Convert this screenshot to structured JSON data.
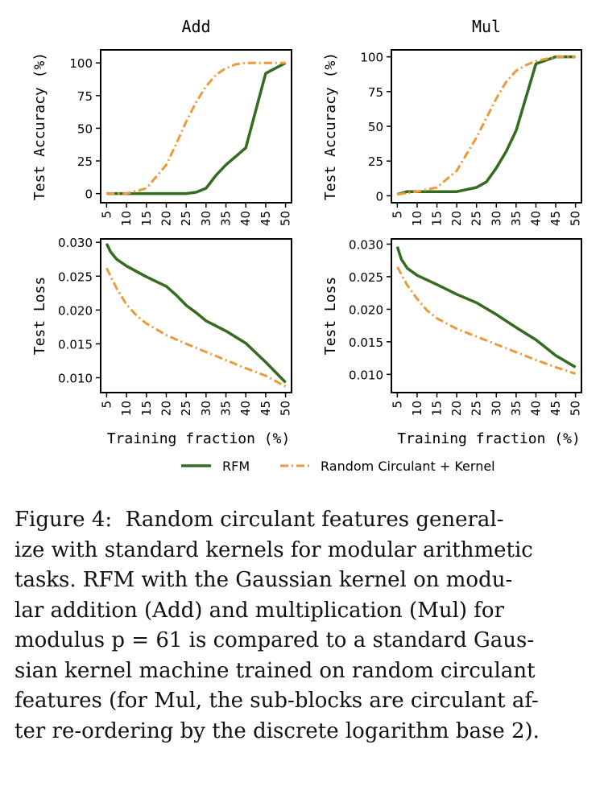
{
  "figure": {
    "legend": [
      {
        "name": "RFM",
        "color": "#336b1f",
        "dash": "solid"
      },
      {
        "name": "Random Circulant + Kernel",
        "color": "#ec9a3a",
        "dash": "dashdot"
      }
    ]
  },
  "chart_data": [
    {
      "id": "add-accuracy",
      "type": "line",
      "title": "Add",
      "xlabel": "",
      "ylabel": "Test Accuracy (%)",
      "ylim": [
        -7,
        110
      ],
      "yticks": [
        0,
        25,
        50,
        75,
        100
      ],
      "ytick_labels": [
        "0",
        "25",
        "50",
        "75",
        "100"
      ],
      "xticks": [
        5,
        10,
        15,
        20,
        25,
        30,
        35,
        40,
        45,
        50
      ],
      "xtick_labels": [
        "5",
        "10",
        "15",
        "20",
        "25",
        "30",
        "35",
        "40",
        "45",
        "50"
      ],
      "series": [
        {
          "name": "RFM",
          "x": [
            5,
            10,
            15,
            20,
            22,
            25,
            27.5,
            30,
            32.5,
            35,
            40,
            45,
            50
          ],
          "values": [
            0,
            0,
            0,
            0,
            0,
            0,
            1,
            4,
            14,
            22,
            35,
            92,
            100
          ]
        },
        {
          "name": "Random Circulant + Kernel",
          "x": [
            5,
            10,
            15,
            20,
            22.5,
            25,
            27.5,
            30,
            32.5,
            35,
            37.5,
            40,
            45,
            50
          ],
          "values": [
            0,
            0,
            4,
            22,
            38,
            55,
            70,
            82,
            91,
            96,
            99,
            100,
            100,
            100
          ]
        }
      ]
    },
    {
      "id": "mul-accuracy",
      "type": "line",
      "title": "Mul",
      "xlabel": "",
      "ylabel": "Test Accuracy (%)",
      "ylim": [
        -5,
        105
      ],
      "yticks": [
        0,
        25,
        50,
        75,
        100
      ],
      "ytick_labels": [
        "0",
        "25",
        "50",
        "75",
        "100"
      ],
      "xticks": [
        5,
        10,
        15,
        20,
        25,
        30,
        35,
        40,
        45,
        50
      ],
      "xtick_labels": [
        "5",
        "10",
        "15",
        "20",
        "25",
        "30",
        "35",
        "40",
        "45",
        "50"
      ],
      "series": [
        {
          "name": "RFM",
          "x": [
            5,
            7.5,
            10,
            15,
            20,
            25,
            27.5,
            30,
            32.5,
            35,
            40,
            45,
            50
          ],
          "values": [
            1,
            3,
            3,
            3,
            3,
            6,
            10,
            20,
            32,
            47,
            95,
            100,
            100
          ]
        },
        {
          "name": "Random Circulant + Kernel",
          "x": [
            5,
            10,
            15,
            20,
            22.5,
            25,
            27.5,
            30,
            32.5,
            35,
            37.5,
            40,
            45,
            50
          ],
          "values": [
            1,
            3,
            6,
            18,
            30,
            42,
            56,
            70,
            82,
            90,
            94,
            97,
            100,
            100
          ]
        }
      ]
    },
    {
      "id": "add-loss",
      "type": "line",
      "title": "",
      "xlabel": "Training fraction (%)",
      "ylabel": "Test Loss",
      "ylim": [
        0.0078,
        0.0305
      ],
      "yticks": [
        0.01,
        0.015,
        0.02,
        0.025,
        0.03
      ],
      "ytick_labels": [
        "0.010",
        "0.015",
        "0.020",
        "0.025",
        "0.030"
      ],
      "xticks": [
        5,
        10,
        15,
        20,
        25,
        30,
        35,
        40,
        45,
        50
      ],
      "xtick_labels": [
        "5",
        "10",
        "15",
        "20",
        "25",
        "30",
        "35",
        "40",
        "45",
        "50"
      ],
      "series": [
        {
          "name": "RFM",
          "x": [
            5,
            6,
            7.5,
            10,
            15,
            20,
            22.5,
            25,
            27.5,
            30,
            35,
            40,
            45,
            50
          ],
          "values": [
            0.0298,
            0.0286,
            0.0275,
            0.0265,
            0.0249,
            0.0235,
            0.0222,
            0.0207,
            0.0196,
            0.0184,
            0.0169,
            0.0151,
            0.0123,
            0.0093
          ]
        },
        {
          "name": "Random Circulant + Kernel",
          "x": [
            5,
            7.5,
            10,
            12.5,
            15,
            20,
            25,
            30,
            35,
            40,
            45,
            50
          ],
          "values": [
            0.0262,
            0.0232,
            0.0208,
            0.0192,
            0.018,
            0.0163,
            0.015,
            0.0138,
            0.0126,
            0.0114,
            0.0103,
            0.0087
          ]
        }
      ]
    },
    {
      "id": "mul-loss",
      "type": "line",
      "title": "",
      "xlabel": "Training fraction (%)",
      "ylabel": "Test Loss",
      "ylim": [
        0.0072,
        0.0308
      ],
      "yticks": [
        0.01,
        0.015,
        0.02,
        0.025,
        0.03
      ],
      "ytick_labels": [
        "0.010",
        "0.015",
        "0.020",
        "0.025",
        "0.030"
      ],
      "xticks": [
        5,
        10,
        15,
        20,
        25,
        30,
        35,
        40,
        45,
        50
      ],
      "xtick_labels": [
        "5",
        "10",
        "15",
        "20",
        "25",
        "30",
        "35",
        "40",
        "45",
        "50"
      ],
      "series": [
        {
          "name": "RFM",
          "x": [
            5,
            6,
            7.5,
            10,
            15,
            20,
            25,
            30,
            35,
            40,
            45,
            50
          ],
          "values": [
            0.0296,
            0.0277,
            0.0263,
            0.0252,
            0.0238,
            0.0223,
            0.021,
            0.0192,
            0.0172,
            0.0153,
            0.0129,
            0.0111
          ]
        },
        {
          "name": "Random Circulant + Kernel",
          "x": [
            5,
            7.5,
            10,
            12.5,
            15,
            20,
            25,
            30,
            35,
            40,
            45,
            50
          ],
          "values": [
            0.0265,
            0.0237,
            0.0216,
            0.0198,
            0.0186,
            0.017,
            0.0158,
            0.0146,
            0.0134,
            0.0122,
            0.0111,
            0.0101
          ]
        }
      ]
    }
  ],
  "caption": {
    "label": "Figure 4:",
    "lines": [
      "Random circulant features general-",
      "ize with standard kernels for modular arithmetic",
      "tasks. RFM with the Gaussian kernel on modu-",
      "lar addition (Add) and multiplication (Mul) for",
      "modulus p = 61 is compared to a standard Gaus-",
      "sian kernel machine trained on random circulant",
      "features (for Mul, the sub-blocks are circulant af-",
      "ter re-ordering by the discrete logarithm base 2)."
    ]
  }
}
